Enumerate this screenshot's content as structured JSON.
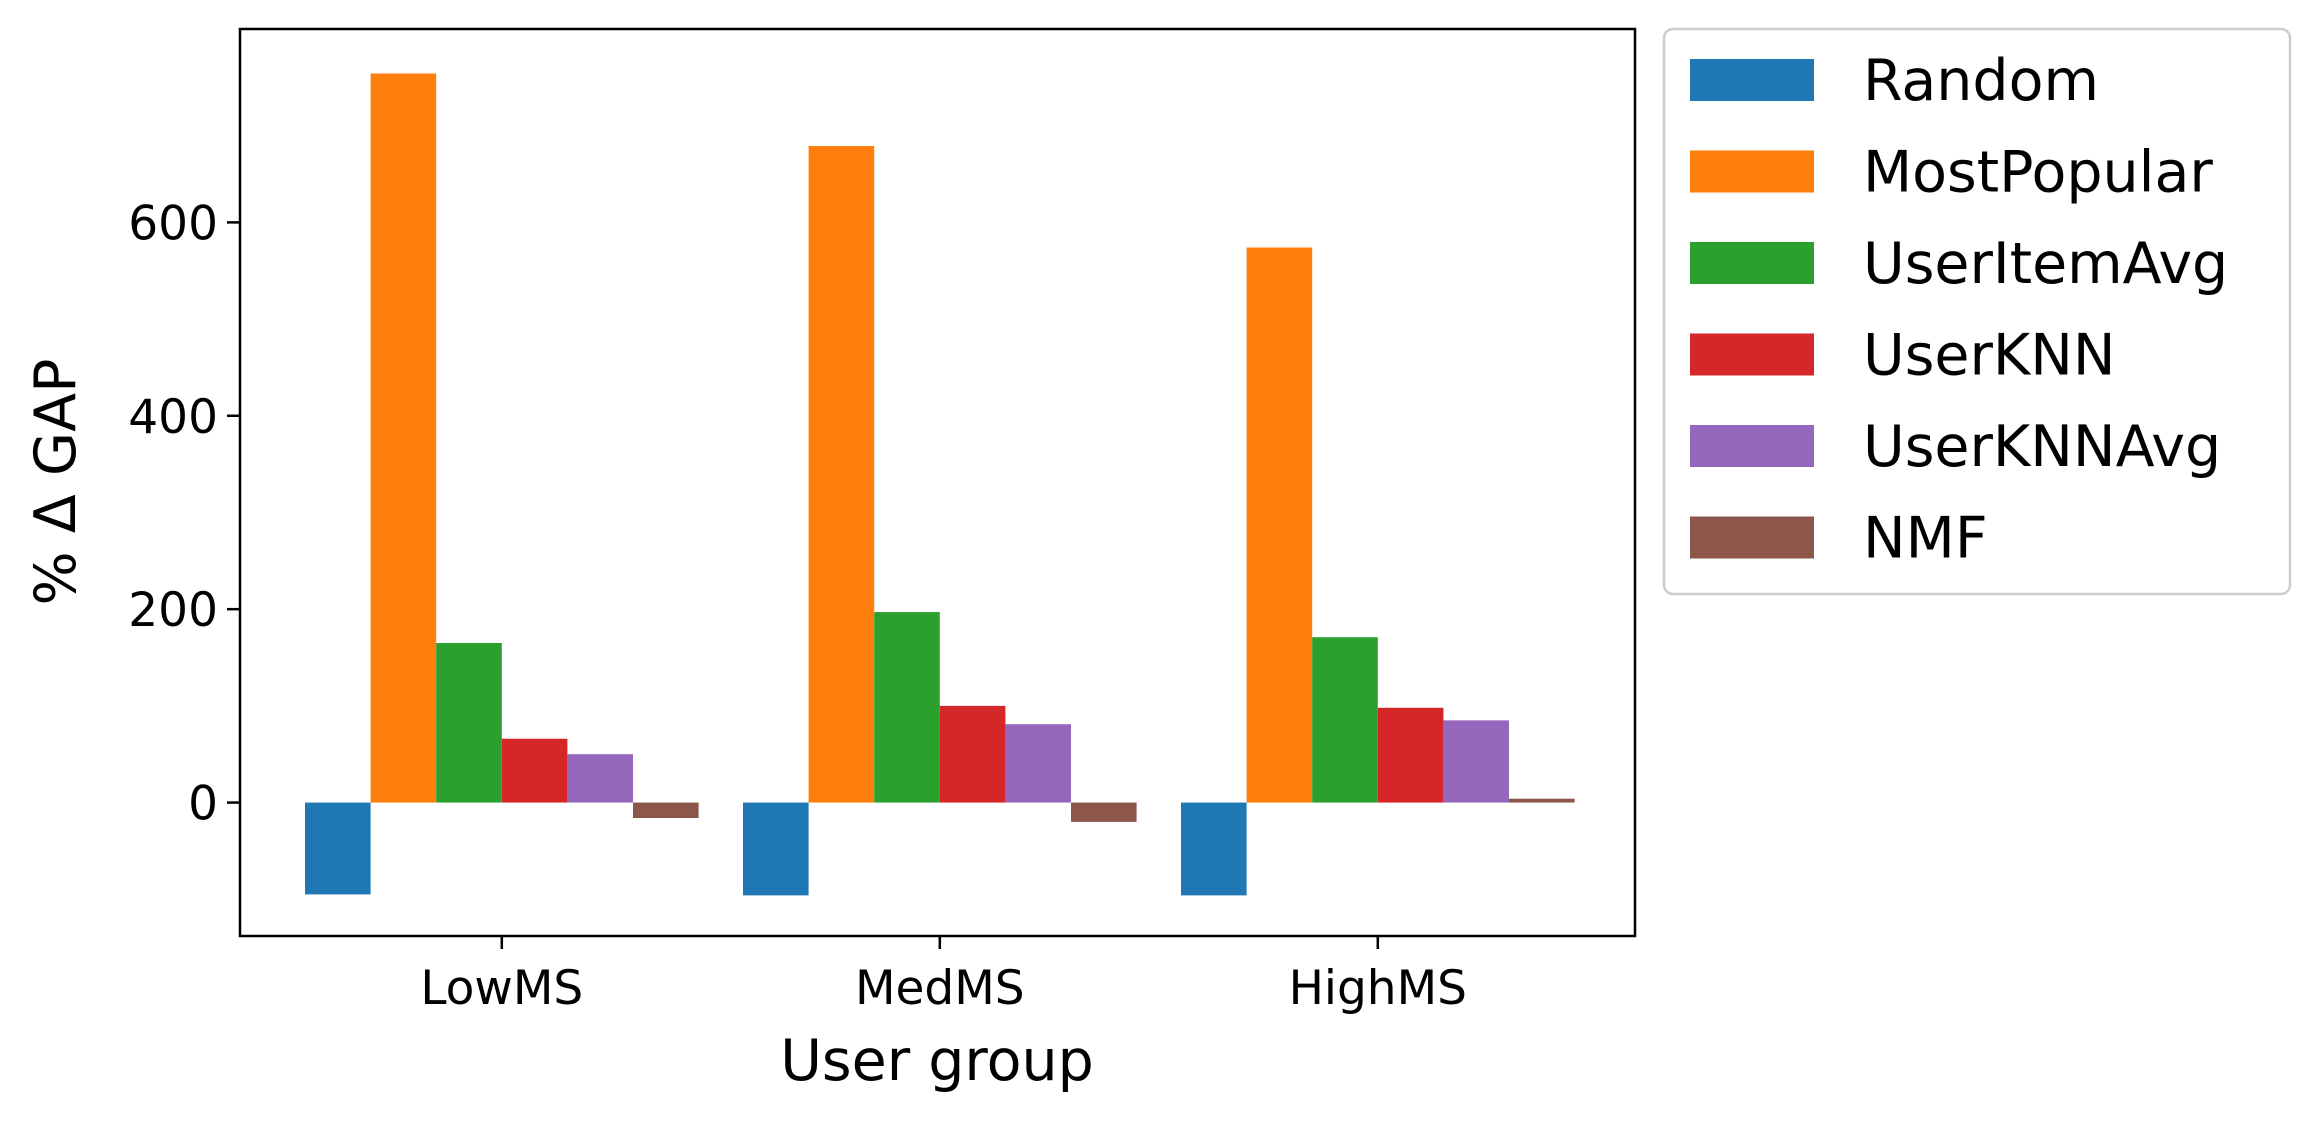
{
  "chart_data": {
    "type": "bar",
    "title": "",
    "xlabel": "User group",
    "ylabel": "% Δ GAP",
    "categories": [
      "LowMS",
      "MedMS",
      "HighMS"
    ],
    "ylim": [
      -138,
      800
    ],
    "yticks": [
      0,
      200,
      400,
      600
    ],
    "grid": false,
    "legend_position": "outside-right",
    "series": [
      {
        "name": "Random",
        "color": "#1f77b4",
        "values": [
          -95,
          -96,
          -96
        ]
      },
      {
        "name": "MostPopular",
        "color": "#ff7f0e",
        "values": [
          754,
          679,
          574
        ]
      },
      {
        "name": "UserItemAvg",
        "color": "#2ca02c",
        "values": [
          165,
          197,
          171
        ]
      },
      {
        "name": "UserKNN",
        "color": "#d62728",
        "values": [
          66,
          100,
          98
        ]
      },
      {
        "name": "UserKNNAvg",
        "color": "#9467bd",
        "values": [
          50,
          81,
          85
        ]
      },
      {
        "name": "NMF",
        "color": "#8c564b",
        "values": [
          -16,
          -20,
          4
        ]
      }
    ]
  }
}
